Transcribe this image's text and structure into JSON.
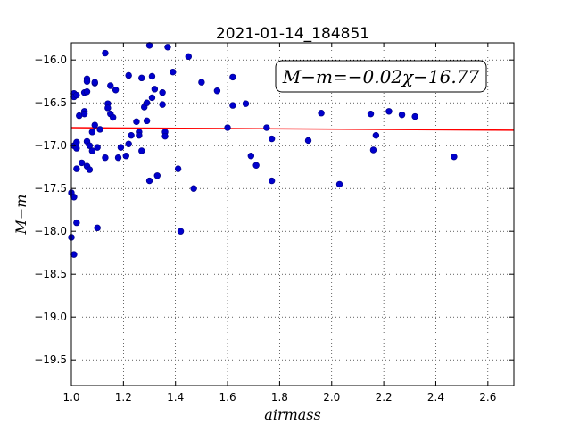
{
  "chart_data": {
    "type": "scatter",
    "title": "2021-01-14_184851",
    "xlabel": "airmass",
    "ylabel": "M−m",
    "xlim": [
      1.0,
      2.7
    ],
    "ylim": [
      -19.8,
      -15.8
    ],
    "y_inverted": true,
    "grid": true,
    "grid_style": "dotted",
    "x_ticks": [
      1.0,
      1.2,
      1.4,
      1.6,
      1.8,
      2.0,
      2.2,
      2.4,
      2.6
    ],
    "x_tick_labels": [
      "1.0",
      "1.2",
      "1.4",
      "1.6",
      "1.8",
      "2.0",
      "2.2",
      "2.4",
      "2.6"
    ],
    "y_ticks": [
      -16.0,
      -16.5,
      -17.0,
      -17.5,
      -18.0,
      -18.5,
      -19.0,
      -19.5
    ],
    "y_tick_labels": [
      "−16.0",
      "−16.5",
      "−17.0",
      "−17.5",
      "−18.0",
      "−18.5",
      "−19.0",
      "−19.5"
    ],
    "annotation": "M−m=−0.02χ−16.77",
    "colors": {
      "points": "#0000cc",
      "points_edge": "#000080",
      "fit_line": "#ff0000"
    },
    "series": [
      {
        "kind": "points",
        "x": [
          1.0,
          1.01,
          1.01,
          1.01,
          1.01,
          1.02,
          1.02,
          1.02,
          1.02,
          1.02,
          1.03,
          1.04,
          1.05,
          1.05,
          1.05,
          1.06,
          1.06,
          1.06,
          1.06,
          1.06,
          1.07,
          1.07,
          1.08,
          1.08,
          1.09,
          1.09,
          1.09,
          1.1,
          1.11,
          1.13,
          1.13,
          1.14,
          1.14,
          1.15,
          1.15,
          1.16,
          1.17,
          1.18,
          1.19,
          1.21,
          1.22,
          1.22,
          1.23,
          1.25,
          1.26,
          1.26,
          1.27,
          1.27,
          1.28,
          1.29,
          1.29,
          1.3,
          1.3,
          1.31,
          1.31,
          1.32,
          1.33,
          1.35,
          1.35,
          1.36,
          1.36,
          1.37,
          1.39,
          1.41,
          1.42,
          1.45,
          1.47,
          1.5,
          1.56,
          1.6,
          1.62,
          1.62,
          1.67,
          1.69,
          1.71,
          1.75,
          1.77,
          1.77,
          1.91,
          1.96,
          2.03,
          2.15,
          2.16,
          2.17,
          2.22,
          2.27,
          2.32,
          2.47
        ],
        "y": [
          -17.55,
          -16.39,
          -16.43,
          -17.0,
          -17.6,
          -16.41,
          -16.96,
          -17.03,
          -17.27,
          -17.9,
          -16.65,
          -17.2,
          -16.38,
          -16.6,
          -16.63,
          -16.22,
          -16.25,
          -16.37,
          -16.95,
          -17.24,
          -17.0,
          -17.28,
          -16.84,
          -17.06,
          -16.76,
          -16.27,
          -16.26,
          -17.02,
          -16.81,
          -15.92,
          -17.14,
          -16.51,
          -16.56,
          -16.3,
          -16.63,
          -16.67,
          -16.35,
          -17.14,
          -17.02,
          -17.12,
          -16.18,
          -16.98,
          -16.88,
          -16.72,
          -16.84,
          -16.88,
          -16.21,
          -17.06,
          -16.55,
          -16.5,
          -16.71,
          -15.83,
          -17.41,
          -16.44,
          -16.19,
          -16.34,
          -17.35,
          -16.38,
          -16.52,
          -16.84,
          -16.89,
          -15.85,
          -16.14,
          -17.27,
          -18.0,
          -15.96,
          -17.5,
          -16.26,
          -16.36,
          -16.79,
          -16.2,
          -16.53,
          -16.51,
          -17.12,
          -17.23,
          -16.79,
          -16.92,
          -17.41,
          -16.94,
          -16.62,
          -17.45,
          -16.63,
          -17.05,
          -16.88,
          -16.6,
          -16.64,
          -16.66,
          -17.13
        ]
      },
      {
        "kind": "points",
        "x": [
          1.0,
          1.01,
          1.1
        ],
        "y": [
          -18.07,
          -18.27,
          -17.96
        ]
      },
      {
        "kind": "line",
        "x": [
          1.0,
          2.7
        ],
        "y": [
          -16.79,
          -16.82
        ]
      }
    ]
  }
}
